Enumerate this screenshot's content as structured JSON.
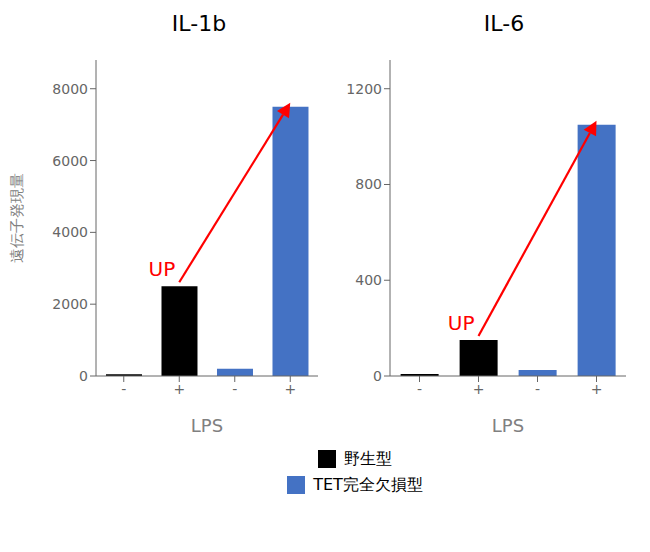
{
  "chart_data": [
    {
      "type": "bar",
      "title": "IL-1b",
      "x_label": "LPS",
      "y_label": "遠伝子発現量",
      "categories": [
        "-",
        "+",
        "-",
        "+"
      ],
      "series": [
        {
          "name": "野生型",
          "color": "#000000",
          "values": [
            50,
            2500,
            null,
            null
          ]
        },
        {
          "name": "TET完全欠損型",
          "color": "#4472c4",
          "values": [
            null,
            null,
            200,
            7500
          ]
        }
      ],
      "ylim": [
        0,
        8800
      ],
      "yticks": [
        0,
        2000,
        4000,
        6000,
        8000
      ],
      "legend": "bottom",
      "annotations": [
        {
          "text": "UP",
          "color": "#ff0000"
        }
      ]
    },
    {
      "type": "bar",
      "title": "IL-6",
      "x_label": "LPS",
      "categories": [
        "-",
        "+",
        "-",
        "+"
      ],
      "series": [
        {
          "name": "野生型",
          "color": "#000000",
          "values": [
            8,
            150,
            null,
            null
          ]
        },
        {
          "name": "TET完全欠損型",
          "color": "#4472c4",
          "values": [
            null,
            null,
            25,
            1050
          ]
        }
      ],
      "ylim": [
        0,
        1320
      ],
      "yticks": [
        0,
        400,
        800,
        1200
      ],
      "legend": "bottom",
      "annotations": [
        {
          "text": "UP",
          "color": "#ff0000"
        }
      ]
    }
  ]
}
